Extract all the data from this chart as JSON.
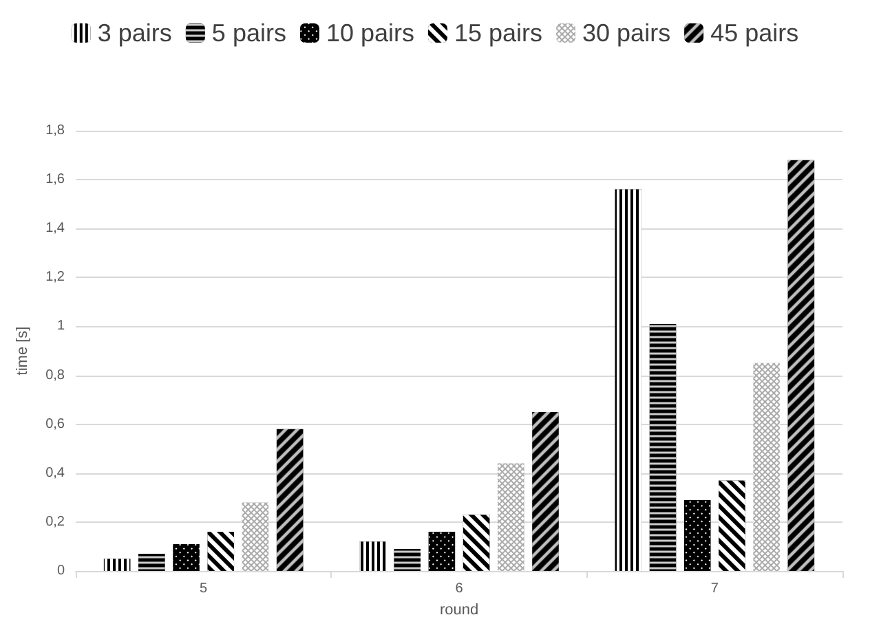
{
  "chart_data": {
    "type": "bar",
    "xlabel": "round",
    "ylabel": "time [s]",
    "categories": [
      "5",
      "6",
      "7"
    ],
    "series": [
      {
        "name": "3 pairs",
        "color": "#000000",
        "values": [
          0.05,
          0.12,
          1.56
        ]
      },
      {
        "name": "5 pairs",
        "color": "#000000",
        "values": [
          0.07,
          0.09,
          1.01
        ]
      },
      {
        "name": "10 pairs",
        "color": "#000000",
        "values": [
          0.11,
          0.16,
          0.29
        ]
      },
      {
        "name": "15 pairs",
        "color": "#000000",
        "values": [
          0.16,
          0.23,
          0.37
        ]
      },
      {
        "name": "30 pairs",
        "color": "#aaaaaa",
        "values": [
          0.28,
          0.44,
          0.85
        ]
      },
      {
        "name": "45 pairs",
        "color": "#000000",
        "values": [
          0.58,
          0.65,
          1.68
        ]
      }
    ],
    "ylim": [
      0,
      1.8
    ],
    "yticks": [
      0,
      {
        "value": 0.2,
        "label": "0,2"
      },
      {
        "value": 0.4,
        "label": "0,4"
      },
      {
        "value": 0.6,
        "label": "0,6"
      },
      {
        "value": 0.8,
        "label": "0,8"
      },
      1,
      {
        "value": 1.2,
        "label": "1,2"
      },
      {
        "value": 1.4,
        "label": "1,4"
      },
      {
        "value": 1.6,
        "label": "1,6"
      },
      {
        "value": 1.8,
        "label": "1,8"
      }
    ],
    "grid": "y",
    "legend": "top"
  }
}
